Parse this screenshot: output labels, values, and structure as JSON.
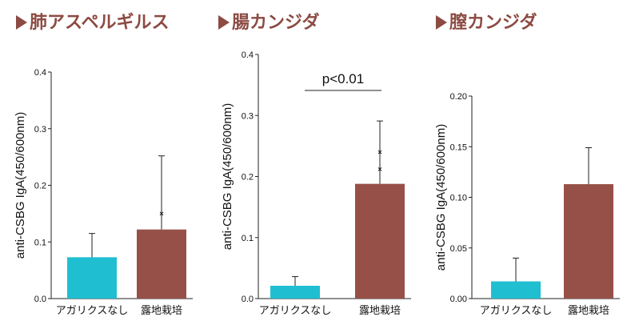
{
  "colors": {
    "title": "#8c4a43",
    "bar_control": "#1fbfd1",
    "bar_treated": "#965048"
  },
  "chart_data": [
    {
      "type": "bar",
      "title": "肺アスペルギルス",
      "ylabel": "anti-CSBG IgA(450/600nm)",
      "categories": [
        "アガリクスなし",
        "露地栽培"
      ],
      "values": [
        0.073,
        0.122
      ],
      "errors": [
        0.042,
        0.13
      ],
      "outliers": [
        [],
        [
          0.15
        ]
      ],
      "ylim": [
        0.0,
        0.4
      ],
      "yticks": [
        "0.0",
        "0.1",
        "0.2",
        "0.3",
        "0.4"
      ],
      "annotation": ""
    },
    {
      "type": "bar",
      "title": "腸カンジダ",
      "ylabel": "anti-CSBG IgA(450/600nm)",
      "categories": [
        "アガリクスなし",
        "露地栽培"
      ],
      "values": [
        0.021,
        0.188
      ],
      "errors": [
        0.015,
        0.103
      ],
      "outliers": [
        [],
        [
          0.24,
          0.212
        ]
      ],
      "ylim": [
        0.0,
        0.4
      ],
      "yticks": [
        "0.0",
        "0.1",
        "0.2",
        "0.3",
        "0.4"
      ],
      "annotation": "p<0.01"
    },
    {
      "type": "bar",
      "title": "膣カンジダ",
      "ylabel": "anti-CSBG IgA(450/600nm)",
      "categories": [
        "アガリクスなし",
        "露地栽培"
      ],
      "values": [
        0.017,
        0.113
      ],
      "errors": [
        0.023,
        0.036
      ],
      "outliers": [
        [],
        []
      ],
      "ylim": [
        0.0,
        0.2
      ],
      "yticks": [
        "0.00",
        "0.05",
        "0.10",
        "0.15",
        "0.20"
      ],
      "annotation": ""
    }
  ]
}
